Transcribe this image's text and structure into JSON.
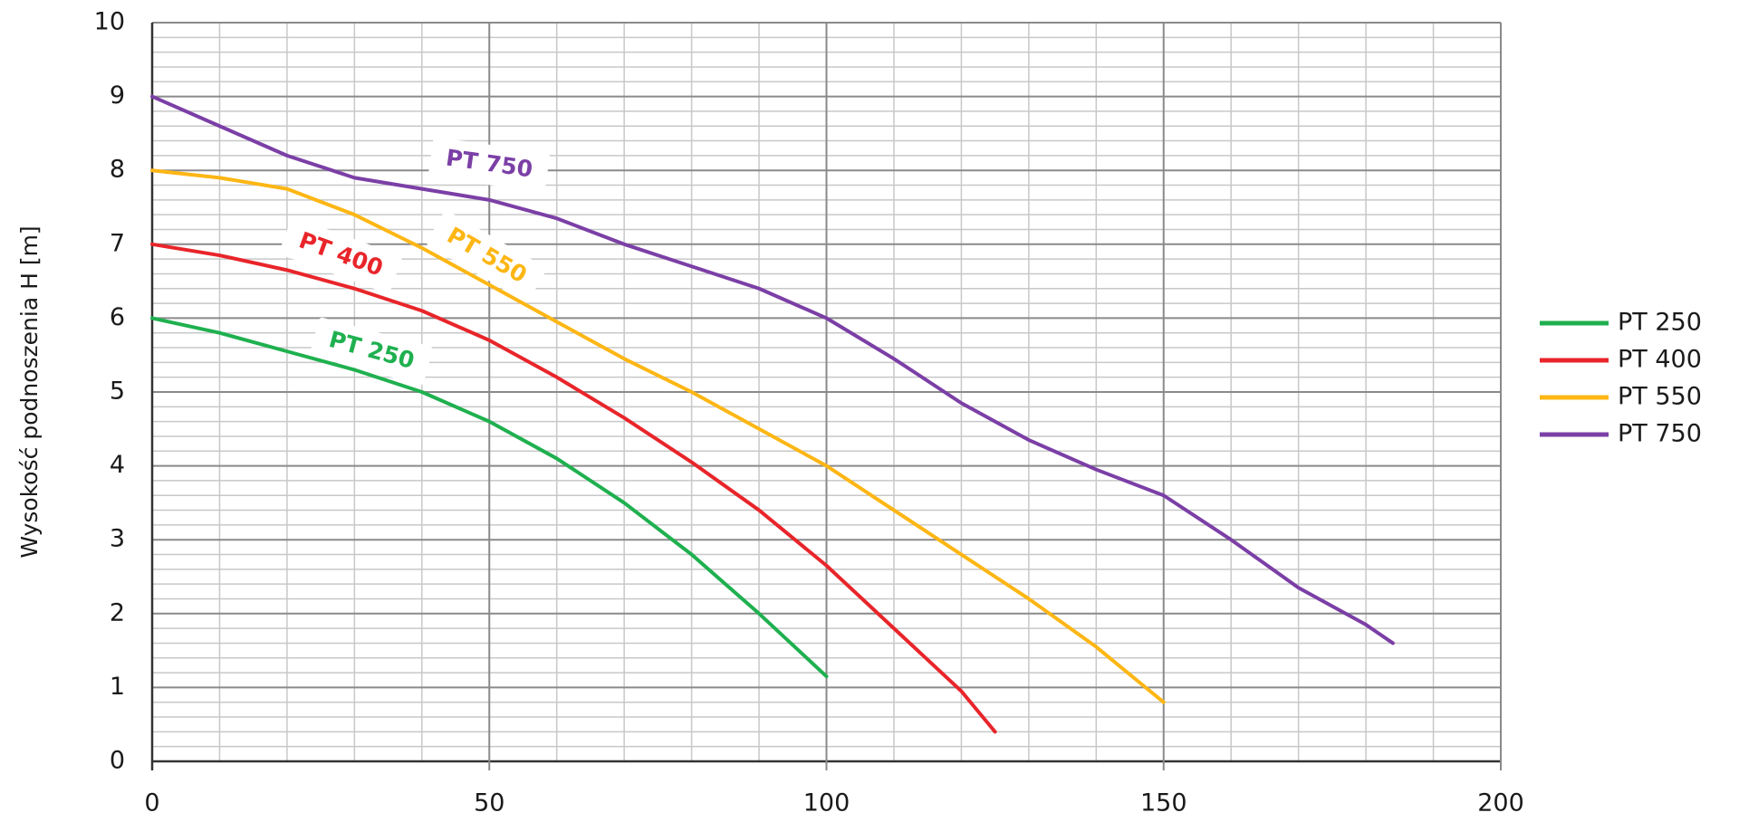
{
  "chart_data": {
    "type": "line",
    "y_label": "Wysokość podnoszenia H [m]",
    "xlim": [
      0,
      200
    ],
    "xticks": [
      0,
      50,
      100,
      150,
      200
    ],
    "ylim": [
      0,
      10
    ],
    "yticks": [
      0,
      1,
      2,
      3,
      4,
      5,
      6,
      7,
      8,
      9,
      10
    ],
    "grid": true,
    "legend": "right",
    "series": [
      {
        "name": "PT 250",
        "color": "#1fb04f",
        "x": [
          0,
          10,
          20,
          30,
          40,
          50,
          60,
          70,
          80,
          90,
          100
        ],
        "values": [
          6,
          5.8,
          5.55,
          5.3,
          5.0,
          4.6,
          4.1,
          3.5,
          2.8,
          2.0,
          1.15
        ]
      },
      {
        "name": "PT 400",
        "color": "#e8252a",
        "x": [
          0,
          10,
          20,
          30,
          40,
          50,
          60,
          70,
          80,
          90,
          100,
          110,
          120,
          125
        ],
        "values": [
          7,
          6.85,
          6.65,
          6.4,
          6.1,
          5.7,
          5.2,
          4.65,
          4.05,
          3.4,
          2.65,
          1.8,
          0.95,
          0.4
        ]
      },
      {
        "name": "PT 550",
        "color": "#fdb614",
        "x": [
          0,
          10,
          20,
          30,
          40,
          50,
          60,
          70,
          80,
          90,
          100,
          110,
          120,
          130,
          140,
          150
        ],
        "values": [
          8,
          7.9,
          7.75,
          7.4,
          6.95,
          6.45,
          5.95,
          5.45,
          5.0,
          4.5,
          4.0,
          3.4,
          2.8,
          2.2,
          1.55,
          0.8
        ]
      },
      {
        "name": "PT 750",
        "color": "#7b3fa6",
        "x": [
          0,
          10,
          20,
          30,
          40,
          50,
          60,
          70,
          80,
          90,
          100,
          110,
          120,
          130,
          140,
          150,
          160,
          170,
          180,
          184
        ],
        "values": [
          9,
          8.6,
          8.2,
          7.9,
          7.75,
          7.6,
          7.35,
          7.0,
          6.7,
          6.4,
          6.0,
          5.45,
          4.85,
          4.35,
          3.95,
          3.6,
          3.0,
          2.35,
          1.85,
          1.6
        ]
      }
    ]
  }
}
